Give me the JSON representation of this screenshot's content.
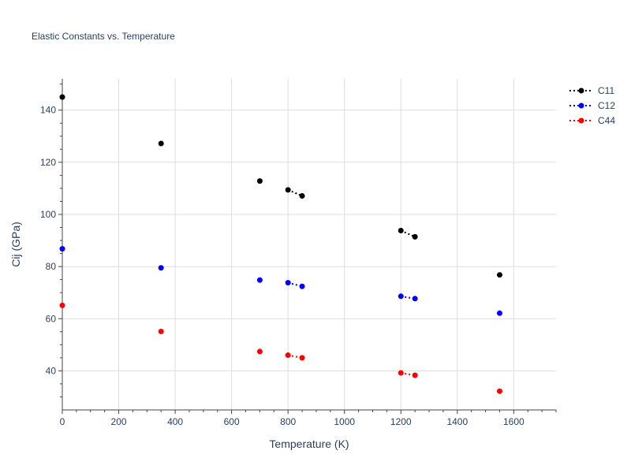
{
  "chart_data": {
    "type": "scatter",
    "title": "Elastic Constants vs. Temperature",
    "xlabel": "Temperature (K)",
    "ylabel": "Cij (GPa)",
    "xlim": [
      0,
      1750
    ],
    "ylim": [
      25,
      152
    ],
    "xticks": [
      0,
      200,
      400,
      600,
      800,
      1000,
      1200,
      1400,
      1600
    ],
    "yticks": [
      40,
      60,
      80,
      100,
      120,
      140
    ],
    "grid": true,
    "legend_position": "top-right",
    "series": [
      {
        "name": "C11",
        "color": "#000000",
        "line_style": "dotted",
        "points": [
          [
            0,
            145
          ],
          [
            350,
            127.2
          ],
          [
            700,
            112.8
          ],
          [
            800,
            109.4
          ],
          [
            850,
            107.1
          ],
          [
            1200,
            93.8
          ],
          [
            1250,
            91.4
          ],
          [
            1550,
            76.8
          ]
        ],
        "connected_segments": [
          [
            800,
            850
          ],
          [
            1200,
            1250
          ]
        ]
      },
      {
        "name": "C12",
        "color": "#0000ff",
        "line_style": "dotted",
        "points": [
          [
            0,
            86.8
          ],
          [
            350,
            79.5
          ],
          [
            700,
            74.8
          ],
          [
            800,
            73.8
          ],
          [
            850,
            72.4
          ],
          [
            1200,
            68.6
          ],
          [
            1250,
            67.7
          ],
          [
            1550,
            62.1
          ]
        ],
        "connected_segments": [
          [
            800,
            850
          ],
          [
            1200,
            1250
          ]
        ]
      },
      {
        "name": "C44",
        "color": "#ff0000",
        "line_style": "dotted",
        "points": [
          [
            0,
            65.1
          ],
          [
            350,
            55.1
          ],
          [
            700,
            47.4
          ],
          [
            800,
            46.0
          ],
          [
            850,
            45.0
          ],
          [
            1200,
            39.2
          ],
          [
            1250,
            38.3
          ],
          [
            1550,
            32.2
          ]
        ],
        "connected_segments": [
          [
            800,
            850
          ],
          [
            1200,
            1250
          ]
        ]
      }
    ]
  }
}
